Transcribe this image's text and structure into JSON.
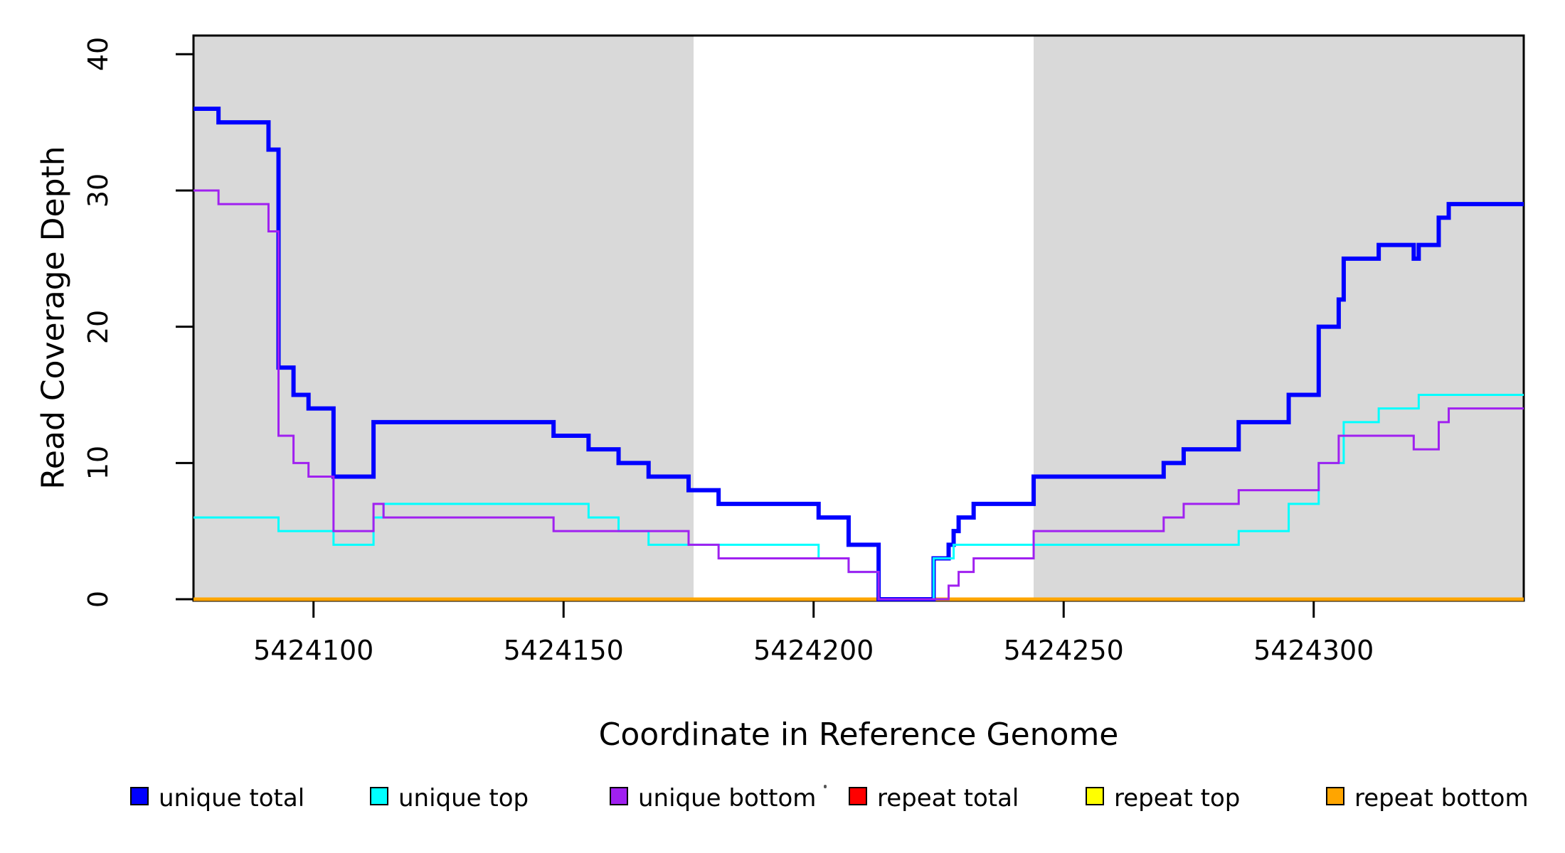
{
  "chart_data": {
    "type": "line",
    "subtype": "step",
    "title": "",
    "xlabel": "Coordinate in Reference Genome",
    "ylabel": "Read Coverage Depth",
    "xlim": [
      5424076,
      5424342
    ],
    "ylim": [
      0,
      40
    ],
    "grid": false,
    "background_color": "#FFFFFF",
    "shaded_region_color": "#D9D9D9",
    "shaded_regions": [
      {
        "from": 5424076,
        "to": 5424176
      },
      {
        "from": 5424244,
        "to": 5424342
      }
    ],
    "x_ticks": [
      {
        "value": 5424100,
        "label": "5424100"
      },
      {
        "value": 5424150,
        "label": "5424150"
      },
      {
        "value": 5424200,
        "label": "5424200"
      },
      {
        "value": 5424250,
        "label": "5424250"
      },
      {
        "value": 5424300,
        "label": "5424300"
      }
    ],
    "y_ticks": [
      {
        "value": 0,
        "label": "0"
      },
      {
        "value": 10,
        "label": "10"
      },
      {
        "value": 20,
        "label": "20"
      },
      {
        "value": 30,
        "label": "30"
      },
      {
        "value": 40,
        "label": "40"
      }
    ],
    "series": [
      {
        "name": "repeat total",
        "color": "#FF0000",
        "width": 4,
        "points": [
          [
            5424076,
            0
          ],
          [
            5424342,
            0
          ]
        ]
      },
      {
        "name": "repeat top",
        "color": "#FFFF00",
        "width": 4,
        "points": [
          [
            5424076,
            0
          ],
          [
            5424342,
            0
          ]
        ]
      },
      {
        "name": "repeat bottom",
        "color": "#FFA500",
        "width": 5,
        "points": [
          [
            5424076,
            0
          ],
          [
            5424342,
            0
          ]
        ]
      },
      {
        "name": "unique total",
        "color": "#0000FF",
        "width": 6,
        "points": [
          [
            5424076,
            36
          ],
          [
            5424081,
            35
          ],
          [
            5424091,
            33
          ],
          [
            5424093,
            17
          ],
          [
            5424096,
            15
          ],
          [
            5424099,
            14
          ],
          [
            5424104,
            9
          ],
          [
            5424112,
            13
          ],
          [
            5424148,
            12
          ],
          [
            5424155,
            11
          ],
          [
            5424161,
            10
          ],
          [
            5424167,
            9
          ],
          [
            5424175,
            8
          ],
          [
            5424181,
            7
          ],
          [
            5424201,
            6
          ],
          [
            5424207,
            4
          ],
          [
            5424213,
            0
          ],
          [
            5424224,
            3
          ],
          [
            5424227,
            4
          ],
          [
            5424228,
            5
          ],
          [
            5424229,
            6
          ],
          [
            5424232,
            7
          ],
          [
            5424244,
            9
          ],
          [
            5424270,
            10
          ],
          [
            5424274,
            11
          ],
          [
            5424285,
            13
          ],
          [
            5424295,
            15
          ],
          [
            5424301,
            20
          ],
          [
            5424305,
            22
          ],
          [
            5424306,
            25
          ],
          [
            5424313,
            26
          ],
          [
            5424320,
            25
          ],
          [
            5424321,
            26
          ],
          [
            5424325,
            28
          ],
          [
            5424327,
            29
          ],
          [
            5424342,
            29
          ]
        ]
      },
      {
        "name": "unique top",
        "color": "#00FFFF",
        "width": 3,
        "points": [
          [
            5424076,
            6
          ],
          [
            5424093,
            5
          ],
          [
            5424104,
            4
          ],
          [
            5424112,
            6
          ],
          [
            5424114,
            7
          ],
          [
            5424155,
            6
          ],
          [
            5424161,
            5
          ],
          [
            5424167,
            4
          ],
          [
            5424201,
            3
          ],
          [
            5424207,
            2
          ],
          [
            5424213,
            0
          ],
          [
            5424224,
            3
          ],
          [
            5424228,
            4
          ],
          [
            5424285,
            5
          ],
          [
            5424295,
            7
          ],
          [
            5424301,
            10
          ],
          [
            5424306,
            13
          ],
          [
            5424313,
            14
          ],
          [
            5424321,
            15
          ],
          [
            5424342,
            15
          ]
        ]
      },
      {
        "name": "unique bottom",
        "color": "#A020F0",
        "width": 3,
        "points": [
          [
            5424076,
            30
          ],
          [
            5424081,
            29
          ],
          [
            5424091,
            27
          ],
          [
            5424093,
            12
          ],
          [
            5424096,
            10
          ],
          [
            5424099,
            9
          ],
          [
            5424104,
            5
          ],
          [
            5424112,
            7
          ],
          [
            5424114,
            6
          ],
          [
            5424148,
            5
          ],
          [
            5424175,
            4
          ],
          [
            5424181,
            3
          ],
          [
            5424207,
            2
          ],
          [
            5424213,
            0
          ],
          [
            5424227,
            1
          ],
          [
            5424229,
            2
          ],
          [
            5424232,
            3
          ],
          [
            5424244,
            5
          ],
          [
            5424270,
            6
          ],
          [
            5424274,
            7
          ],
          [
            5424285,
            8
          ],
          [
            5424301,
            10
          ],
          [
            5424305,
            12
          ],
          [
            5424320,
            11
          ],
          [
            5424325,
            13
          ],
          [
            5424327,
            14
          ],
          [
            5424342,
            14
          ]
        ]
      }
    ],
    "legend": [
      {
        "label": "unique total",
        "color": "#0000FF"
      },
      {
        "label": "unique top",
        "color": "#00FFFF"
      },
      {
        "label": "unique bottom",
        "color": "#A020F0"
      },
      {
        "label": "repeat total",
        "color": "#FF0000"
      },
      {
        "label": "repeat top",
        "color": "#FFFF00"
      },
      {
        "label": "repeat bottom",
        "color": "#FFA500"
      }
    ],
    "legend_position": "bottom"
  }
}
